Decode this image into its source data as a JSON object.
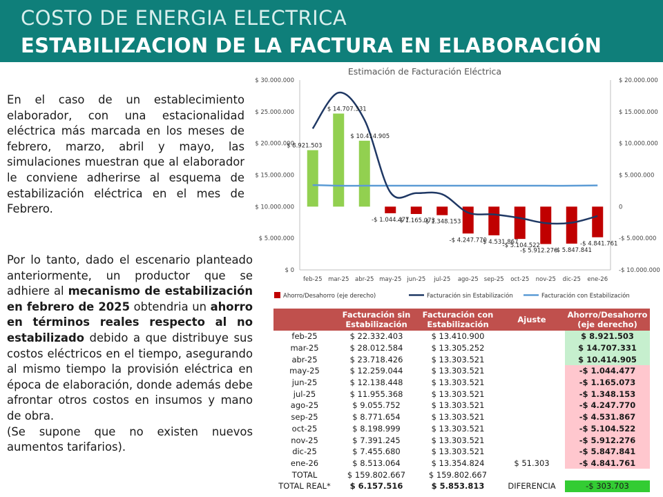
{
  "header": {
    "title_line1": "COSTO DE ENERGIA ELECTRICA",
    "title_line2": "ESTABILIZACION DE LA FACTURA EN ELABORACIÓN"
  },
  "text": {
    "para1": "En el caso de un establecimiento elaborador, con una estacionalidad eléctrica más marcada en los meses de febrero, marzo, abril y mayo, las simulaciones muestran que al elaborador le conviene adherirse al esquema de estabilización eléctrica en el mes de Febrero.",
    "para2_a": "Por lo tanto, dado el escenario planteado anteriormente, un productor que se adhiere al ",
    "para2_b": "mecanismo de estabilización en febrero de 2025",
    "para2_c": " obtendria un ",
    "para2_d": "ahorro en términos reales respecto al no estabilizado",
    "para2_e": " debido a que distribuye sus costos eléctricos en el tiempo, asegurando al mismo tiempo la provisión eléctrica en época de elaboración, donde además debe afrontar otros costos en insumos y mano de obra.",
    "para3": "(Se supone que no existen nuevos aumentos tarifarios)."
  },
  "chart_data": {
    "type": "bar",
    "title": "Estimación de Facturación Eléctrica",
    "categories": [
      "feb-25",
      "mar-25",
      "abr-25",
      "may-25",
      "jun-25",
      "jul-25",
      "ago-25",
      "sep-25",
      "oct-25",
      "nov-25",
      "dic-25",
      "ene-26"
    ],
    "left_axis": {
      "ticks": [
        "$ 0",
        "$ 5.000.000",
        "$ 10.000.000",
        "$ 15.000.000",
        "$ 20.000.000",
        "$ 25.000.000",
        "$ 30.000.000"
      ],
      "ylim": [
        0,
        30000000
      ]
    },
    "right_axis": {
      "ticks": [
        "-$ 10.000.000",
        "-$ 5.000.000",
        "0",
        "$ 5.000.000",
        "$ 10.000.000",
        "$ 15.000.000",
        "$ 20.000.000"
      ],
      "ylim": [
        -10000000,
        20000000
      ]
    },
    "series": [
      {
        "name": "Ahorro/Desahorro (eje derecho)",
        "kind": "bar",
        "axis": "right",
        "values": [
          8921503,
          14707331,
          10414905,
          -1044477,
          -1165073,
          -1348153,
          -4247770,
          -4531867,
          -5104522,
          -5912276,
          -5847841,
          -4841761
        ],
        "labels": [
          "$ 8.921.503",
          "$ 14.707.331",
          "$ 10.414.905",
          "-$ 1.044.477",
          "-$ 1.165.073",
          "-$ 1.348.153",
          "-$ 4.247.770",
          "-$ 4.531.867",
          "-$ 5.104.522",
          "-$ 5.912.276",
          "-$ 5.847.841",
          "-$ 4.841.761"
        ]
      },
      {
        "name": "Facturación sin Estabilización",
        "kind": "line",
        "axis": "left",
        "values": [
          22332403,
          28012584,
          23718426,
          12259044,
          12138448,
          11955368,
          9055752,
          8771654,
          8198999,
          7391245,
          7455680,
          8513064
        ]
      },
      {
        "name": "Facturación con Estabilización",
        "kind": "line",
        "axis": "left",
        "values": [
          13410900,
          13305252,
          13303521,
          13303521,
          13303521,
          13303521,
          13303521,
          13303521,
          13303521,
          13303521,
          13303521,
          13354824
        ]
      }
    ],
    "colors": {
      "positive_bar": "#92d050",
      "negative_bar": "#c00000",
      "line_sin": "#1f3864",
      "line_con": "#5b9bd5"
    },
    "legend_position": "bottom"
  },
  "table": {
    "headers": [
      "",
      "Facturación sin Estabilización",
      "Facturación con Estabilización",
      "Ajuste",
      "Ahorro/Desahorro (eje derecho)"
    ],
    "rows": [
      {
        "mes": "feb-25",
        "sin": "$ 22.332.403",
        "con": "$ 13.410.900",
        "ajuste": "",
        "ahorro": "$ 8.921.503",
        "tipo": "pos"
      },
      {
        "mes": "mar-25",
        "sin": "$ 28.012.584",
        "con": "$ 13.305.252",
        "ajuste": "",
        "ahorro": "$ 14.707.331",
        "tipo": "pos"
      },
      {
        "mes": "abr-25",
        "sin": "$ 23.718.426",
        "con": "$ 13.303.521",
        "ajuste": "",
        "ahorro": "$ 10.414.905",
        "tipo": "pos"
      },
      {
        "mes": "may-25",
        "sin": "$ 12.259.044",
        "con": "$ 13.303.521",
        "ajuste": "",
        "ahorro": "-$ 1.044.477",
        "tipo": "neg"
      },
      {
        "mes": "jun-25",
        "sin": "$ 12.138.448",
        "con": "$ 13.303.521",
        "ajuste": "",
        "ahorro": "-$ 1.165.073",
        "tipo": "neg"
      },
      {
        "mes": "jul-25",
        "sin": "$ 11.955.368",
        "con": "$ 13.303.521",
        "ajuste": "",
        "ahorro": "-$ 1.348.153",
        "tipo": "neg"
      },
      {
        "mes": "ago-25",
        "sin": "$ 9.055.752",
        "con": "$ 13.303.521",
        "ajuste": "",
        "ahorro": "-$ 4.247.770",
        "tipo": "neg"
      },
      {
        "mes": "sep-25",
        "sin": "$ 8.771.654",
        "con": "$ 13.303.521",
        "ajuste": "",
        "ahorro": "-$ 4.531.867",
        "tipo": "neg"
      },
      {
        "mes": "oct-25",
        "sin": "$ 8.198.999",
        "con": "$ 13.303.521",
        "ajuste": "",
        "ahorro": "-$ 5.104.522",
        "tipo": "neg"
      },
      {
        "mes": "nov-25",
        "sin": "$ 7.391.245",
        "con": "$ 13.303.521",
        "ajuste": "",
        "ahorro": "-$ 5.912.276",
        "tipo": "neg"
      },
      {
        "mes": "dic-25",
        "sin": "$ 7.455.680",
        "con": "$ 13.303.521",
        "ajuste": "",
        "ahorro": "-$ 5.847.841",
        "tipo": "neg"
      },
      {
        "mes": "ene-26",
        "sin": "$ 8.513.064",
        "con": "$ 13.354.824",
        "ajuste": "$ 51.303",
        "ahorro": "-$ 4.841.761",
        "tipo": "neg"
      }
    ],
    "total": {
      "label": "TOTAL",
      "sin": "$ 159.802.667",
      "con": "$ 159.802.667"
    },
    "total_real": {
      "label": "TOTAL REAL*",
      "sin": "$ 6.157.516",
      "con": "$ 5.853.813",
      "diff_label": "DIFERENCIA",
      "diff": "-$ 303.703"
    }
  }
}
